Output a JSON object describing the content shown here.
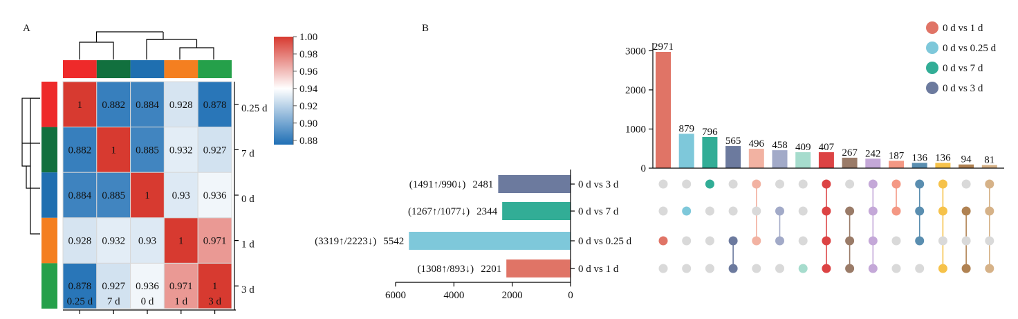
{
  "panels": {
    "a_label": "A",
    "b_label": "B"
  },
  "chart_data": [
    {
      "type": "heatmap",
      "title": "",
      "rows": [
        "0.25 d",
        "7 d",
        "0 d",
        "1 d",
        "3 d"
      ],
      "cols": [
        "0.25 d",
        "7 d",
        "0 d",
        "1 d",
        "3 d"
      ],
      "values": [
        [
          "1",
          "0.882",
          "0.884",
          "0.928",
          "0.878"
        ],
        [
          "0.882",
          "1",
          "0.885",
          "0.932",
          "0.927"
        ],
        [
          "0.884",
          "0.885",
          "1",
          "0.93",
          "0.936"
        ],
        [
          "0.928",
          "0.932",
          "0.93",
          "1",
          "0.971"
        ],
        [
          "0.878",
          "0.927",
          "0.936",
          "0.971",
          "1"
        ]
      ],
      "group_colors": [
        "#ee2a2a",
        "#12703e",
        "#1f6fb0",
        "#f47f20",
        "#25a04a"
      ],
      "colorbar": {
        "ticks": [
          "1.00",
          "0.98",
          "0.96",
          "0.94",
          "0.92",
          "0.90",
          "0.88"
        ],
        "range": [
          0.875,
          1.0
        ],
        "colors": {
          "high": "#d73a30",
          "mid": "#ffffff",
          "low": "#1f6fb5"
        }
      }
    },
    {
      "type": "bar",
      "subtype": "upset-intersections",
      "values": [
        2971,
        879,
        796,
        565,
        496,
        458,
        409,
        407,
        267,
        242,
        187,
        136,
        136,
        94,
        81
      ],
      "labels": [
        "2971",
        "879",
        "796",
        "565",
        "496",
        "458",
        "409",
        "407",
        "267",
        "242",
        "187",
        "136",
        "136",
        "94",
        "81"
      ],
      "colors": [
        "#e07466",
        "#7ec8da",
        "#32ad96",
        "#6c7a9e",
        "#f2b2a2",
        "#a2aac8",
        "#a6dccd",
        "#dc4344",
        "#9a7b68",
        "#c4a8d8",
        "#f49884",
        "#5a8eb0",
        "#f6c24a",
        "#b08252",
        "#d6b288"
      ],
      "ylim": [
        0,
        3200
      ],
      "yticks": [
        "0",
        "1000",
        "2000",
        "3000"
      ],
      "memberships": [
        [
          false,
          false,
          true,
          false
        ],
        [
          false,
          true,
          false,
          false
        ],
        [
          true,
          false,
          false,
          false
        ],
        [
          false,
          false,
          true,
          true
        ],
        [
          true,
          false,
          true,
          false
        ],
        [
          false,
          true,
          true,
          false
        ],
        [
          false,
          false,
          false,
          true
        ],
        [
          true,
          true,
          true,
          true
        ],
        [
          false,
          true,
          true,
          true
        ],
        [
          true,
          true,
          true,
          true
        ],
        [
          true,
          true,
          false,
          false
        ],
        [
          true,
          true,
          true,
          false
        ],
        [
          true,
          true,
          false,
          true
        ],
        [
          false,
          true,
          false,
          true
        ],
        [
          true,
          true,
          false,
          true
        ]
      ],
      "set_names": [
        "0 d vs 3 d",
        "0 d vs 7 d",
        "0 d vs 0.25 d",
        "0 d vs 1 d"
      ]
    },
    {
      "type": "bar",
      "orientation": "horizontal",
      "categories": [
        "0 d vs 3 d",
        "0 d vs 7 d",
        "0 d vs 0.25 d",
        "0 d vs 1 d"
      ],
      "values": [
        2481,
        2344,
        5542,
        2201
      ],
      "value_labels": [
        "2481",
        "2344",
        "5542",
        "2201"
      ],
      "annotations": [
        "(1491↑/990↓)",
        "(1267↑/1077↓)",
        "(3319↑/2223↓)",
        "(1308↑/893↓)"
      ],
      "colors": [
        "#6c7a9e",
        "#32ad96",
        "#7ec8da",
        "#e07466"
      ],
      "xlim": [
        0,
        6000
      ],
      "xticks": [
        "6000",
        "4000",
        "2000",
        "0"
      ],
      "direction": "reversed"
    }
  ],
  "legend": {
    "items": [
      {
        "label": "0 d vs 1 d",
        "color": "#e07466"
      },
      {
        "label": "0 d vs 0.25 d",
        "color": "#7ec8da"
      },
      {
        "label": "0 d vs 7 d",
        "color": "#32ad96"
      },
      {
        "label": "0 d vs 3 d",
        "color": "#6c7a9e"
      }
    ]
  }
}
